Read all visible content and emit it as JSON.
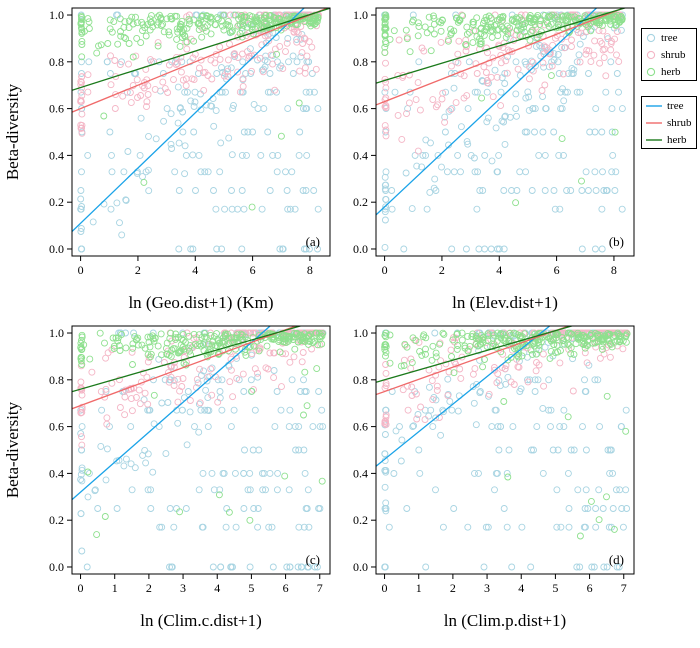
{
  "figure": {
    "ylabel_top": "Beta-diversity",
    "ylabel_bottom": "Beta-diversity"
  },
  "legend": {
    "points": [
      {
        "label": "tree",
        "color": "#A8D4E2"
      },
      {
        "label": "shrub",
        "color": "#F4B6C6"
      },
      {
        "label": "herb",
        "color": "#8EE08E"
      }
    ],
    "lines": [
      {
        "label": "tree",
        "color": "#1AA3E8"
      },
      {
        "label": "shrub",
        "color": "#F06A6A"
      },
      {
        "label": "herb",
        "color": "#1B7A1B"
      }
    ]
  },
  "chart_data": [
    {
      "type": "scatter",
      "panel": "(a)",
      "xlabel": "ln (Geo.dist+1) (Km)",
      "ylabel": "Beta-diversity",
      "xlim": [
        -0.3,
        8.7
      ],
      "ylim": [
        -0.03,
        1.03
      ],
      "xticks": [
        0,
        2,
        4,
        6,
        8
      ],
      "yticks": [
        0.0,
        0.2,
        0.4,
        0.6,
        0.8,
        1.0
      ],
      "series": [
        {
          "name": "tree",
          "intercept": 0.11,
          "slope": 0.118
        },
        {
          "name": "shrub",
          "intercept": 0.6,
          "slope": 0.05
        },
        {
          "name": "herb",
          "intercept": 0.69,
          "slope": 0.039
        }
      ]
    },
    {
      "type": "scatter",
      "panel": "(b)",
      "xlabel": "ln (Elev.dist+1)",
      "ylabel": "",
      "xlim": [
        -0.3,
        8.7
      ],
      "ylim": [
        -0.03,
        1.03
      ],
      "xticks": [
        0,
        2,
        4,
        6,
        8
      ],
      "yticks": [
        0.0,
        0.2,
        0.4,
        0.6,
        0.8,
        1.0
      ],
      "series": [
        {
          "name": "tree",
          "intercept": 0.18,
          "slope": 0.115
        },
        {
          "name": "shrub",
          "intercept": 0.63,
          "slope": 0.048
        },
        {
          "name": "herb",
          "intercept": 0.72,
          "slope": 0.037
        }
      ]
    },
    {
      "type": "scatter",
      "panel": "(c)",
      "xlabel": "ln (Clim.c.dist+1)",
      "ylabel": "Beta-diversity",
      "xlim": [
        -0.25,
        7.3
      ],
      "ylim": [
        -0.03,
        1.03
      ],
      "xticks": [
        0,
        1,
        2,
        3,
        4,
        5,
        6,
        7
      ],
      "yticks": [
        0.0,
        0.2,
        0.4,
        0.6,
        0.8,
        1.0
      ],
      "series": [
        {
          "name": "tree",
          "intercept": 0.32,
          "slope": 0.128
        },
        {
          "name": "shrub",
          "intercept": 0.69,
          "slope": 0.054
        },
        {
          "name": "herb",
          "intercept": 0.76,
          "slope": 0.042
        }
      ]
    },
    {
      "type": "scatter",
      "panel": "(d)",
      "xlabel": "ln (Clim.p.dist+1)",
      "ylabel": "",
      "xlim": [
        -0.25,
        7.3
      ],
      "ylim": [
        -0.03,
        1.03
      ],
      "xticks": [
        0,
        1,
        2,
        3,
        4,
        5,
        6,
        7
      ],
      "yticks": [
        0.0,
        0.2,
        0.4,
        0.6,
        0.8,
        1.0
      ],
      "series": [
        {
          "name": "tree",
          "intercept": 0.46,
          "slope": 0.118
        },
        {
          "name": "shrub",
          "intercept": 0.75,
          "slope": 0.052
        },
        {
          "name": "herb",
          "intercept": 0.8,
          "slope": 0.042
        }
      ]
    }
  ]
}
